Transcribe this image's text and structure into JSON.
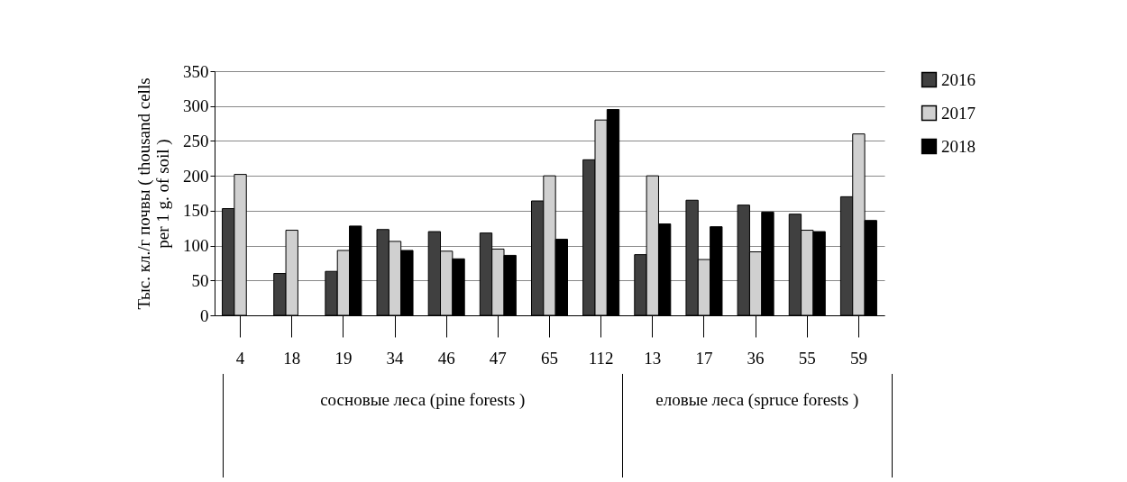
{
  "chart_data": {
    "type": "bar",
    "ylabel": "Тыс. кл./г почвы ( thousand cells per 1 g. of soil )",
    "categories": [
      "4",
      "18",
      "19",
      "34",
      "46",
      "47",
      "65",
      "112",
      "13",
      "17",
      "36",
      "55",
      "59"
    ],
    "series": [
      {
        "name": "2016",
        "color": "#404040",
        "values": [
          153,
          60,
          63,
          123,
          120,
          118,
          164,
          223,
          87,
          165,
          158,
          145,
          170
        ]
      },
      {
        "name": "2017",
        "color": "#d0d0d0",
        "values": [
          202,
          122,
          93,
          106,
          92,
          95,
          200,
          280,
          200,
          80,
          91,
          122,
          260
        ]
      },
      {
        "name": "2018",
        "color": "#000000",
        "values": [
          null,
          null,
          128,
          93,
          81,
          86,
          109,
          295,
          131,
          127,
          148,
          120,
          136
        ]
      }
    ],
    "ylim": [
      0,
      350
    ],
    "yticks": [
      0,
      50,
      100,
      150,
      200,
      250,
      300,
      350
    ],
    "grid": "y",
    "legend": "right",
    "annotations": [
      "сосновые леса (pine forests )",
      "еловые леса (spruce forests )"
    ]
  }
}
